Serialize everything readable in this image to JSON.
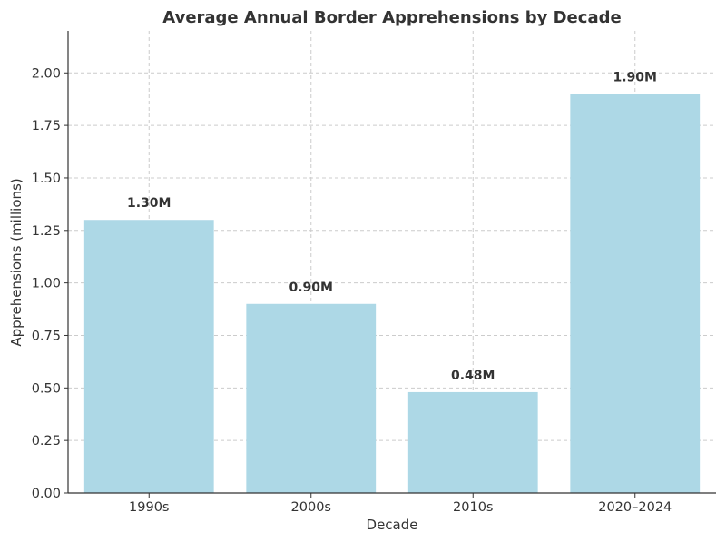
{
  "chart_data": {
    "type": "bar",
    "title": "Average Annual Border Apprehensions by Decade",
    "xlabel": "Decade",
    "ylabel": "Apprehensions (millions)",
    "categories": [
      "1990s",
      "2000s",
      "2010s",
      "2020–2024"
    ],
    "values": [
      1.3,
      0.9,
      0.48,
      1.9
    ],
    "data_labels": [
      "1.30M",
      "0.90M",
      "0.48M",
      "1.90M"
    ],
    "ylim": [
      0,
      2.2
    ],
    "yticks": [
      0.0,
      0.25,
      0.5,
      0.75,
      1.0,
      1.25,
      1.5,
      1.75,
      2.0
    ],
    "ytick_labels": [
      "0.00",
      "0.25",
      "0.50",
      "0.75",
      "1.00",
      "1.25",
      "1.50",
      "1.75",
      "2.00"
    ],
    "grid": true,
    "bar_color": "#add8e6",
    "text_color": "#333333"
  }
}
